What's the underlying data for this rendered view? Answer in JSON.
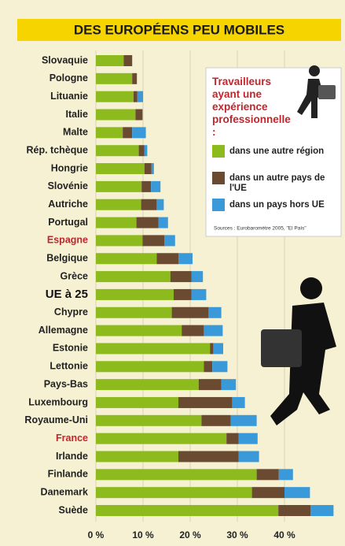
{
  "chart_data": {
    "type": "stacked_bar_horizontal",
    "title": "DES EUROPÉENS PEU MOBILES",
    "categories": [
      "Slovaquie",
      "Pologne",
      "Lituanie",
      "Italie",
      "Malte",
      "Rép. tchèque",
      "Hongrie",
      "Slovénie",
      "Autriche",
      "Portugal",
      "Espagne",
      "Belgique",
      "Grèce",
      "UE à 25",
      "Chypre",
      "Allemagne",
      "Estonie",
      "Lettonie",
      "Pays-Bas",
      "Luxembourg",
      "Royaume-Uni",
      "France",
      "Irlande",
      "Finlande",
      "Danemark",
      "Suède"
    ],
    "category_colors": [
      "#222",
      "#222",
      "#222",
      "#222",
      "#222",
      "#222",
      "#222",
      "#222",
      "#222",
      "#222",
      "#c0262d",
      "#222",
      "#222",
      "#111",
      "#222",
      "#222",
      "#222",
      "#222",
      "#222",
      "#222",
      "#222",
      "#c0262d",
      "#222",
      "#222",
      "#222",
      "#222"
    ],
    "legend_title": "Travailleurs ayant une expérience professionnelle :",
    "series": [
      {
        "name": "dans une autre région",
        "color": "#8dbb1e",
        "values": [
          5.9,
          7.7,
          8,
          8.4,
          5.7,
          9.1,
          10.3,
          9.7,
          9.6,
          8.6,
          9.9,
          12.9,
          15.8,
          16.5,
          16.1,
          18.2,
          24.2,
          22.9,
          21.8,
          17.5,
          22.4,
          27.7,
          17.5,
          34.1,
          33.1,
          38.7
        ]
      },
      {
        "name": "dans un autre pays de l'UE",
        "color": "#6b4a32",
        "values": [
          1.8,
          1,
          0.8,
          1.5,
          2,
          1.2,
          1.5,
          2,
          3.3,
          4.7,
          4.6,
          4.6,
          4.5,
          3.8,
          7.8,
          4.7,
          0.7,
          1.8,
          4.8,
          11.4,
          6.2,
          2.6,
          12.8,
          4.7,
          6.9,
          6.8
        ]
      },
      {
        "name": "dans un pays hors UE",
        "color": "#3a9ad9",
        "values": [
          0,
          0,
          1.2,
          0,
          2.9,
          0.6,
          0.5,
          2,
          1.5,
          2,
          2.3,
          3,
          2.4,
          3.1,
          2.7,
          4,
          2.1,
          3.2,
          3.1,
          2.7,
          5.5,
          4,
          4.3,
          3,
          5.4,
          4.9
        ]
      }
    ],
    "xlim": [
      0,
      50
    ],
    "xticks": [
      {
        "value": 0,
        "label": "0 %"
      },
      {
        "value": 10,
        "label": "10 %"
      },
      {
        "value": 20,
        "label": "20 %"
      },
      {
        "value": 30,
        "label": "30 %"
      },
      {
        "value": 40,
        "label": "40 %"
      }
    ],
    "grid": true,
    "source": "Sources : Eurobaromètre 2005, \"El País\""
  }
}
